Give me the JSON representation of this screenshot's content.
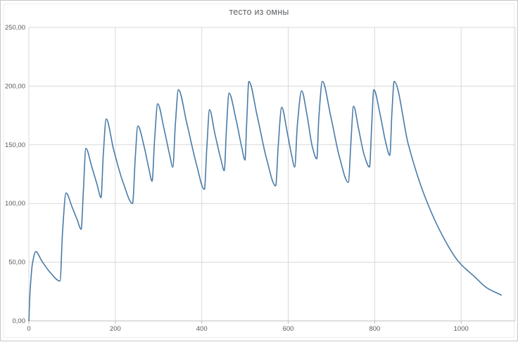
{
  "window": {
    "background": "#ffffff",
    "border_color": "#c9c7c5"
  },
  "chart_data": {
    "type": "line",
    "title": "тесто из омны",
    "xlabel": "",
    "ylabel": "",
    "legend": "none",
    "grid": true,
    "xlim": [
      0,
      1125
    ],
    "ylim": [
      0,
      250
    ],
    "x_ticks": [
      {
        "v": 0,
        "label": "0"
      },
      {
        "v": 200,
        "label": "200"
      },
      {
        "v": 400,
        "label": "400"
      },
      {
        "v": 600,
        "label": "600"
      },
      {
        "v": 800,
        "label": "800"
      },
      {
        "v": 1000,
        "label": "1000"
      }
    ],
    "y_ticks": [
      {
        "v": 0,
        "label": "0,00"
      },
      {
        "v": 50,
        "label": "50,00"
      },
      {
        "v": 100,
        "label": "100,00"
      },
      {
        "v": 150,
        "label": "150,00"
      },
      {
        "v": 200,
        "label": "200,00"
      },
      {
        "v": 250,
        "label": "250,00"
      }
    ],
    "colors": {
      "line": "#4a7ba7",
      "grid": "#d9d9d9",
      "axis": "#bfbfbf",
      "tick_text": "#595959",
      "title_text": "#5f6366"
    },
    "series": [
      {
        "name": "",
        "points": [
          [
            0,
            0
          ],
          [
            3,
            26
          ],
          [
            8,
            48
          ],
          [
            16,
            59
          ],
          [
            30,
            51
          ],
          [
            50,
            41
          ],
          [
            72,
            34
          ],
          [
            78,
            76
          ],
          [
            86,
            109
          ],
          [
            100,
            97
          ],
          [
            112,
            86
          ],
          [
            121,
            78
          ],
          [
            126,
            110
          ],
          [
            132,
            147
          ],
          [
            145,
            132
          ],
          [
            158,
            116
          ],
          [
            167,
            105
          ],
          [
            172,
            140
          ],
          [
            179,
            172
          ],
          [
            196,
            146
          ],
          [
            218,
            118
          ],
          [
            240,
            100
          ],
          [
            246,
            138
          ],
          [
            252,
            166
          ],
          [
            267,
            148
          ],
          [
            278,
            129
          ],
          [
            285,
            119
          ],
          [
            291,
            155
          ],
          [
            298,
            185
          ],
          [
            313,
            163
          ],
          [
            326,
            141
          ],
          [
            333,
            131
          ],
          [
            339,
            168
          ],
          [
            346,
            197
          ],
          [
            365,
            169
          ],
          [
            388,
            133
          ],
          [
            406,
            112
          ],
          [
            412,
            150
          ],
          [
            418,
            180
          ],
          [
            430,
            160
          ],
          [
            444,
            138
          ],
          [
            452,
            128
          ],
          [
            457,
            163
          ],
          [
            463,
            194
          ],
          [
            479,
            172
          ],
          [
            493,
            147
          ],
          [
            500,
            137
          ],
          [
            504,
            170
          ],
          [
            509,
            204
          ],
          [
            528,
            175
          ],
          [
            550,
            138
          ],
          [
            571,
            115
          ],
          [
            577,
            150
          ],
          [
            585,
            182
          ],
          [
            597,
            162
          ],
          [
            608,
            141
          ],
          [
            615,
            131
          ],
          [
            621,
            166
          ],
          [
            631,
            196
          ],
          [
            644,
            174
          ],
          [
            656,
            148
          ],
          [
            666,
            138
          ],
          [
            671,
            174
          ],
          [
            679,
            204
          ],
          [
            698,
            175
          ],
          [
            719,
            139
          ],
          [
            739,
            118
          ],
          [
            745,
            152
          ],
          [
            751,
            183
          ],
          [
            763,
            163
          ],
          [
            776,
            141
          ],
          [
            788,
            131
          ],
          [
            793,
            166
          ],
          [
            798,
            197
          ],
          [
            812,
            177
          ],
          [
            825,
            153
          ],
          [
            835,
            141
          ],
          [
            840,
            178
          ],
          [
            845,
            204
          ],
          [
            878,
            150
          ],
          [
            915,
            107
          ],
          [
            962,
            69
          ],
          [
            995,
            50
          ],
          [
            1030,
            38
          ],
          [
            1060,
            28
          ],
          [
            1093,
            22
          ]
        ]
      }
    ]
  }
}
